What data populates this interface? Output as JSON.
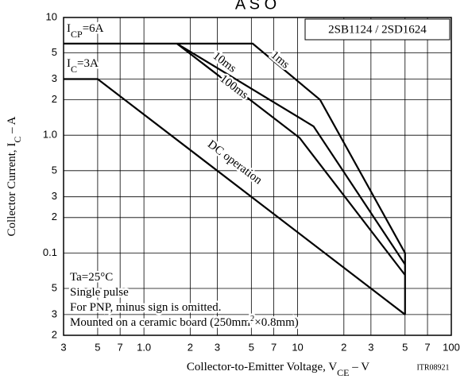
{
  "chart_data": {
    "type": "line",
    "title": "A S O",
    "model": "2SB1124 / 2SD1624",
    "code": "ITR08921",
    "x_label": [
      {
        "text": "Collector-to-Emitter Voltage, V"
      },
      {
        "text": "CE",
        "sub": true
      },
      {
        "text": " – V"
      }
    ],
    "y_label": [
      {
        "text": "Collector Current, I"
      },
      {
        "text": "C",
        "sub": true
      },
      {
        "text": " – A"
      }
    ],
    "annotations": [
      [
        {
          "text": "I"
        },
        {
          "text": "CP",
          "sub": true
        },
        {
          "text": "=6A"
        }
      ],
      [
        {
          "text": "I"
        },
        {
          "text": "C",
          "sub": true
        },
        {
          "text": "=3A"
        }
      ]
    ],
    "notes": [
      [
        {
          "text": "Ta=25°C"
        }
      ],
      [
        {
          "text": "Single pulse"
        }
      ],
      [
        {
          "text": "For PNP, minus sign is omitted."
        }
      ],
      [
        {
          "text": "Mounted on a ceramic board (250mm"
        },
        {
          "text": "2",
          "sup": true
        },
        {
          "text": "×0.8mm)"
        }
      ]
    ],
    "log_x": true,
    "log_y": true,
    "grid": true,
    "xlim": [
      0.3,
      100
    ],
    "ylim": [
      0.02,
      10
    ],
    "xticks": [
      {
        "value": 0.3,
        "label": "3"
      },
      {
        "value": 0.5,
        "label": "5"
      },
      {
        "value": 0.7,
        "label": "7"
      },
      {
        "value": 1,
        "label": "1.0"
      },
      2,
      3,
      5,
      7,
      10,
      {
        "value": 20,
        "label": "2"
      },
      {
        "value": 30,
        "label": "3"
      },
      {
        "value": 50,
        "label": "5"
      },
      {
        "value": 70,
        "label": "7"
      },
      100
    ],
    "yticks": [
      10,
      5,
      3,
      2,
      {
        "value": 1,
        "label": "1.0"
      },
      {
        "value": 0.5,
        "label": "5"
      },
      {
        "value": 0.3,
        "label": "3"
      },
      {
        "value": 0.2,
        "label": "2"
      },
      0.1,
      {
        "value": 0.05,
        "label": "5"
      },
      {
        "value": 0.03,
        "label": "3"
      },
      {
        "value": 0.02,
        "label": "2"
      }
    ],
    "series": [
      {
        "name": "1ms",
        "color": "#000000",
        "x": [
          0.3,
          5.1,
          14,
          50,
          50
        ],
        "values": [
          6,
          6,
          2,
          0.1,
          0.03
        ]
      },
      {
        "name": "10ms",
        "color": "#000000",
        "x": [
          1.64,
          12.7,
          50
        ],
        "values": [
          6,
          1.19,
          0.08
        ]
      },
      {
        "name": "100ms",
        "color": "#000000",
        "x": [
          1.64,
          10.3,
          50
        ],
        "values": [
          6,
          0.95,
          0.065
        ]
      },
      {
        "name": "DC operation",
        "color": "#000000",
        "x": [
          0.3,
          0.5,
          50
        ],
        "values": [
          3,
          3,
          0.03
        ]
      }
    ]
  }
}
